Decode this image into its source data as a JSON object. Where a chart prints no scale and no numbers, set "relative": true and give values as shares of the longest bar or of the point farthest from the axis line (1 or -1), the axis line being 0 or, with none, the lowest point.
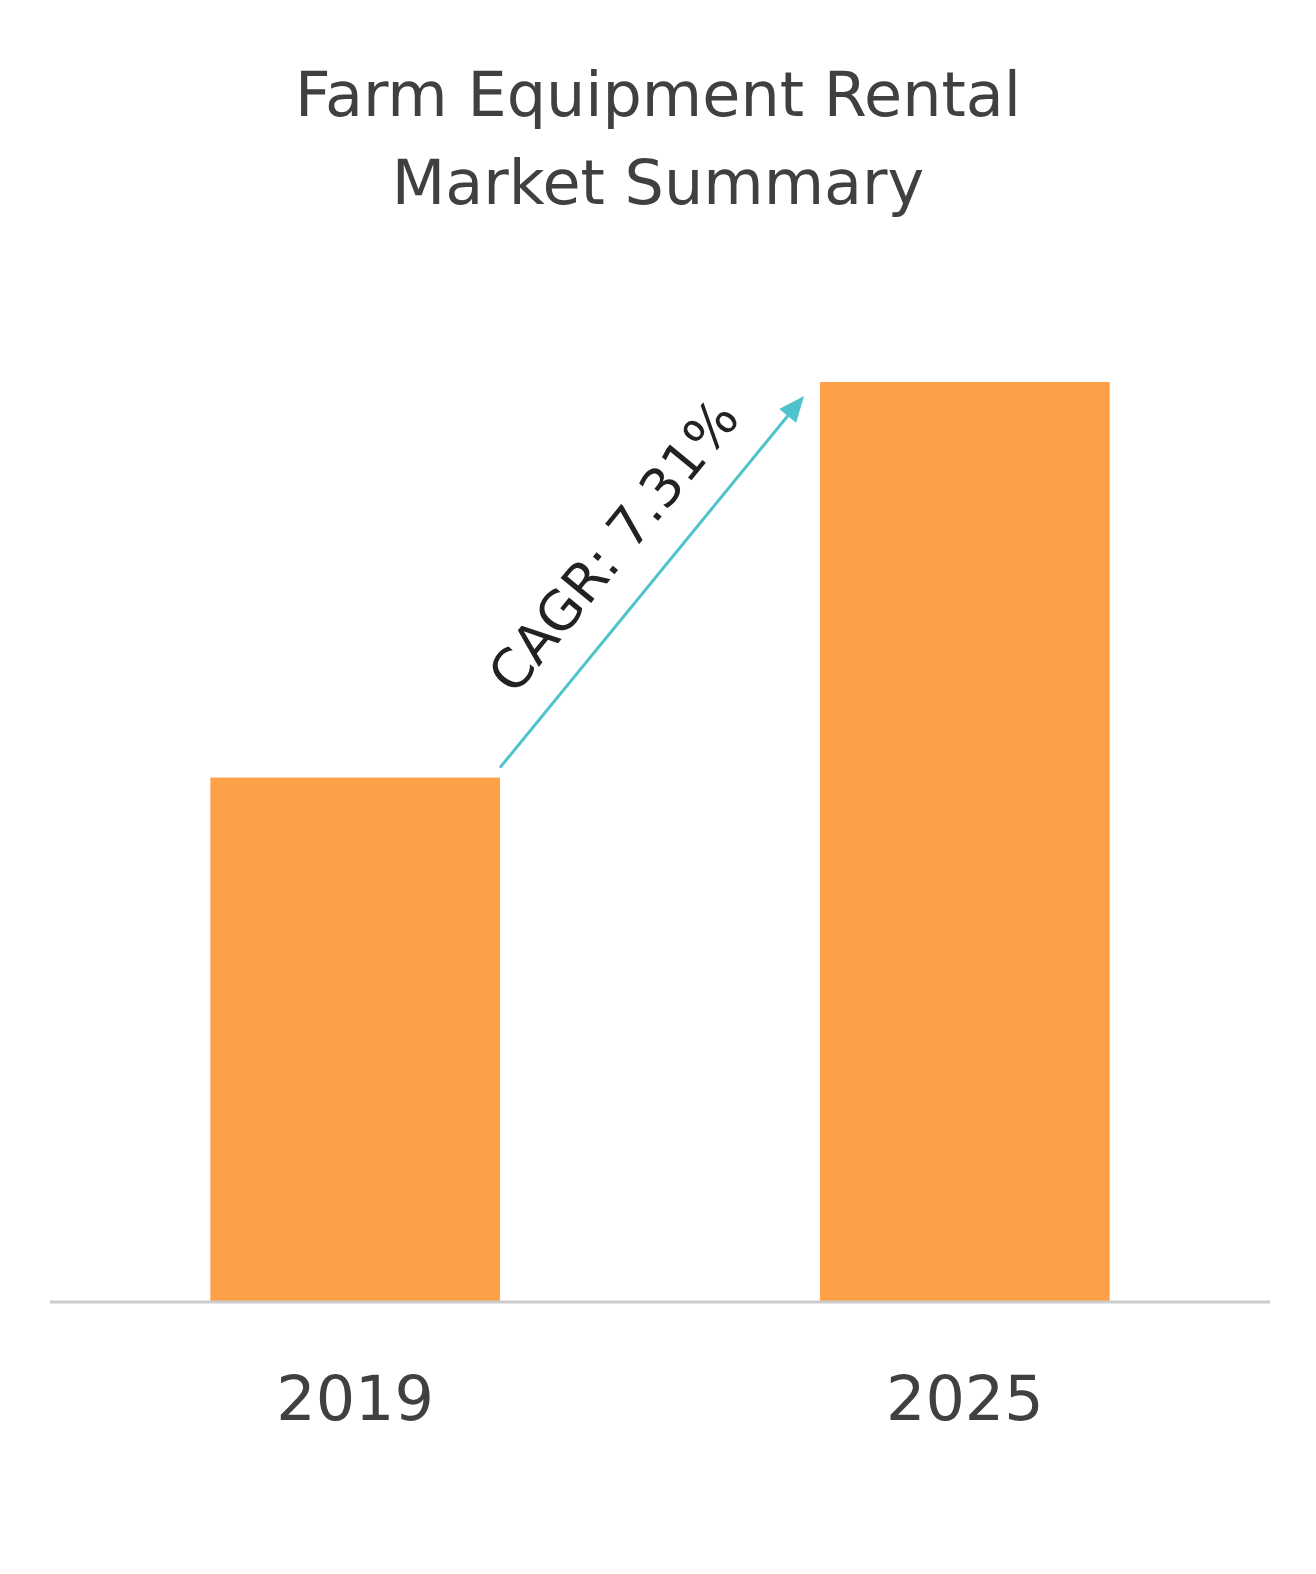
{
  "chart_data": {
    "type": "bar",
    "title": "Farm Equipment Rental Market Summary",
    "categories": [
      "2019",
      "2025"
    ],
    "values": [
      0.57,
      1
    ],
    "color": "#fda047",
    "relative": true,
    "annotations": [
      "CAGR: 7.31%"
    ]
  }
}
